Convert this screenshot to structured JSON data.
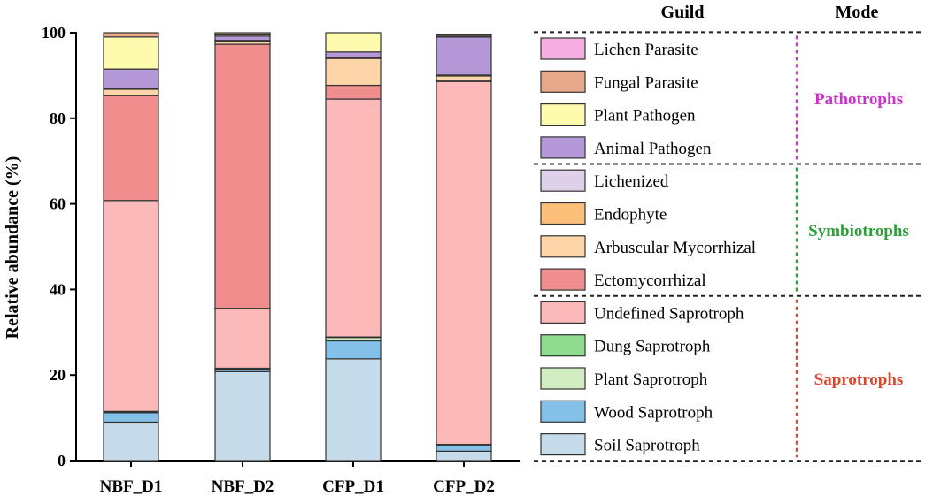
{
  "chart_data": {
    "type": "bar",
    "stacked": true,
    "ylabel": "Relative abundance (%)",
    "xlabel": "",
    "ylim": [
      0,
      100
    ],
    "yticks": [
      0,
      20,
      40,
      60,
      80,
      100
    ],
    "categories": [
      "NBF_D1",
      "NBF_D2",
      "CFP_D1",
      "CFP_D2"
    ],
    "legend_header": "Guild",
    "mode_header": "Mode",
    "series": [
      {
        "name": "Soil Saprotroph",
        "color": "#c6dbea",
        "values": [
          9.0,
          20.8,
          23.8,
          2.2
        ]
      },
      {
        "name": "Wood Saprotroph",
        "color": "#84c0e8",
        "values": [
          2.2,
          0.5,
          4.2,
          1.5
        ]
      },
      {
        "name": "Plant Saprotroph",
        "color": "#d3edc3",
        "values": [
          0.2,
          0.2,
          0.8,
          0.0
        ]
      },
      {
        "name": "Dung Saprotroph",
        "color": "#8fdb8f",
        "values": [
          0.1,
          0.1,
          0.1,
          0.1
        ]
      },
      {
        "name": "Undefined Saprotroph",
        "color": "#fbb9b9",
        "values": [
          49.3,
          14.0,
          55.6,
          84.8
        ]
      },
      {
        "name": "Ectomycorrhizal",
        "color": "#f08d8d",
        "values": [
          24.5,
          61.7,
          3.2,
          0.3
        ]
      },
      {
        "name": "Arbuscular Mycorrhizal",
        "color": "#fdd5a8",
        "values": [
          1.5,
          0.7,
          6.3,
          1.0
        ]
      },
      {
        "name": "Endophyte",
        "color": "#fbbf7a",
        "values": [
          0.1,
          0.1,
          0.1,
          0.1
        ]
      },
      {
        "name": "Lichenized",
        "color": "#ddd0e8",
        "values": [
          0.1,
          0.1,
          0.1,
          0.1
        ]
      },
      {
        "name": "Animal Pathogen",
        "color": "#b598d8",
        "values": [
          4.5,
          1.0,
          1.3,
          8.9
        ]
      },
      {
        "name": "Plant Pathogen",
        "color": "#fefbaf",
        "values": [
          7.5,
          0.3,
          4.5,
          0.2
        ]
      },
      {
        "name": "Fungal Parasite",
        "color": "#e8a88a",
        "values": [
          1.0,
          0.5,
          0.0,
          0.3
        ]
      },
      {
        "name": "Lichen Parasite",
        "color": "#f6aee0",
        "values": [
          0.0,
          0.0,
          0.0,
          0.0
        ]
      }
    ],
    "legend_order": [
      "Lichen Parasite",
      "Fungal Parasite",
      "Plant Pathogen",
      "Animal Pathogen",
      "Lichenized",
      "Endophyte",
      "Arbuscular Mycorrhizal",
      "Ectomycorrhizal",
      "Undefined Saprotroph",
      "Dung Saprotroph",
      "Plant Saprotroph",
      "Wood Saprotroph",
      "Soil Saprotroph"
    ],
    "modes": [
      {
        "name": "Pathotrophs",
        "color": "#cc33cc",
        "members": [
          "Lichen Parasite",
          "Fungal Parasite",
          "Plant Pathogen",
          "Animal Pathogen"
        ]
      },
      {
        "name": "Symbiotrophs",
        "color": "#2e9e3a",
        "members": [
          "Lichenized",
          "Endophyte",
          "Arbuscular Mycorrhizal",
          "Ectomycorrhizal"
        ]
      },
      {
        "name": "Saprotrophs",
        "color": "#e0442a",
        "members": [
          "Undefined Saprotroph",
          "Dung Saprotroph",
          "Plant Saprotroph",
          "Wood Saprotroph",
          "Soil Saprotroph"
        ]
      }
    ],
    "grid": false
  }
}
